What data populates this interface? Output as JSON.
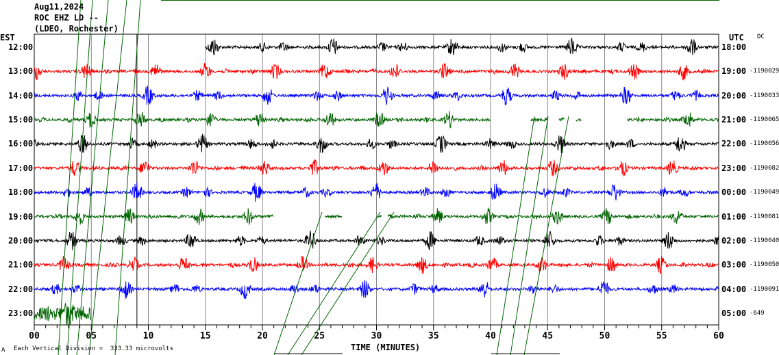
{
  "header": {
    "date": "Aug11,2024",
    "station": "ROC EHZ LD --",
    "network": "(LDEO, Rochester)"
  },
  "left_axis_label": "EST",
  "right_axis_label": "UTC",
  "dc_label": "DC",
  "footer": {
    "scale_note": "Each Vertical Division =  333.33 microvolts",
    "xlabel": "TIME (MINUTES)",
    "corner": "A"
  },
  "chart_data": {
    "type": "line",
    "title": "ROC EHZ LD -- Aug11,2024",
    "xlabel": "TIME (MINUTES)",
    "xlim": [
      0,
      60
    ],
    "x_ticks": [
      "00",
      "05",
      "10",
      "15",
      "20",
      "25",
      "30",
      "35",
      "40",
      "45",
      "50",
      "55",
      "60"
    ],
    "colors": [
      "#000000",
      "#ff0000",
      "#0000ff",
      "#006400"
    ],
    "rows": [
      {
        "est": "12:00",
        "utc": "18:00",
        "dc": "",
        "segments": [
          [
            15,
            60
          ]
        ]
      },
      {
        "est": "13:00",
        "utc": "19:00",
        "dc": "-1190029",
        "segments": [
          [
            0,
            60
          ]
        ]
      },
      {
        "est": "14:00",
        "utc": "20:00",
        "dc": "-1190033",
        "segments": [
          [
            0,
            60
          ]
        ]
      },
      {
        "est": "15:00",
        "utc": "21:00",
        "dc": "-1190065",
        "segments": [
          [
            0,
            40
          ],
          [
            43.5,
            45
          ],
          [
            46,
            46.5
          ],
          [
            47.5,
            48
          ],
          [
            52,
            60
          ]
        ]
      },
      {
        "est": "16:00",
        "utc": "22:00",
        "dc": "-1190056",
        "segments": [
          [
            0,
            60
          ]
        ]
      },
      {
        "est": "17:00",
        "utc": "23:00",
        "dc": "-1190082",
        "segments": [
          [
            0,
            60
          ]
        ]
      },
      {
        "est": "18:00",
        "utc": "00:00",
        "dc": "-1190049",
        "segments": [
          [
            0,
            60
          ]
        ]
      },
      {
        "est": "19:00",
        "utc": "01:00",
        "dc": "-1190081",
        "segments": [
          [
            0,
            21
          ],
          [
            25.5,
            27
          ],
          [
            30,
            30.5
          ],
          [
            31,
            60
          ]
        ]
      },
      {
        "est": "20:00",
        "utc": "02:00",
        "dc": "-1190040",
        "segments": [
          [
            0,
            60
          ]
        ]
      },
      {
        "est": "21:00",
        "utc": "03:00",
        "dc": "-1190050",
        "segments": [
          [
            0,
            60
          ]
        ]
      },
      {
        "est": "22:00",
        "utc": "04:00",
        "dc": "-1190091",
        "segments": [
          [
            0,
            60
          ]
        ]
      },
      {
        "est": "23:00",
        "utc": "05:00",
        "dc": "-649",
        "segments": [
          [
            0,
            5
          ]
        ]
      }
    ]
  }
}
